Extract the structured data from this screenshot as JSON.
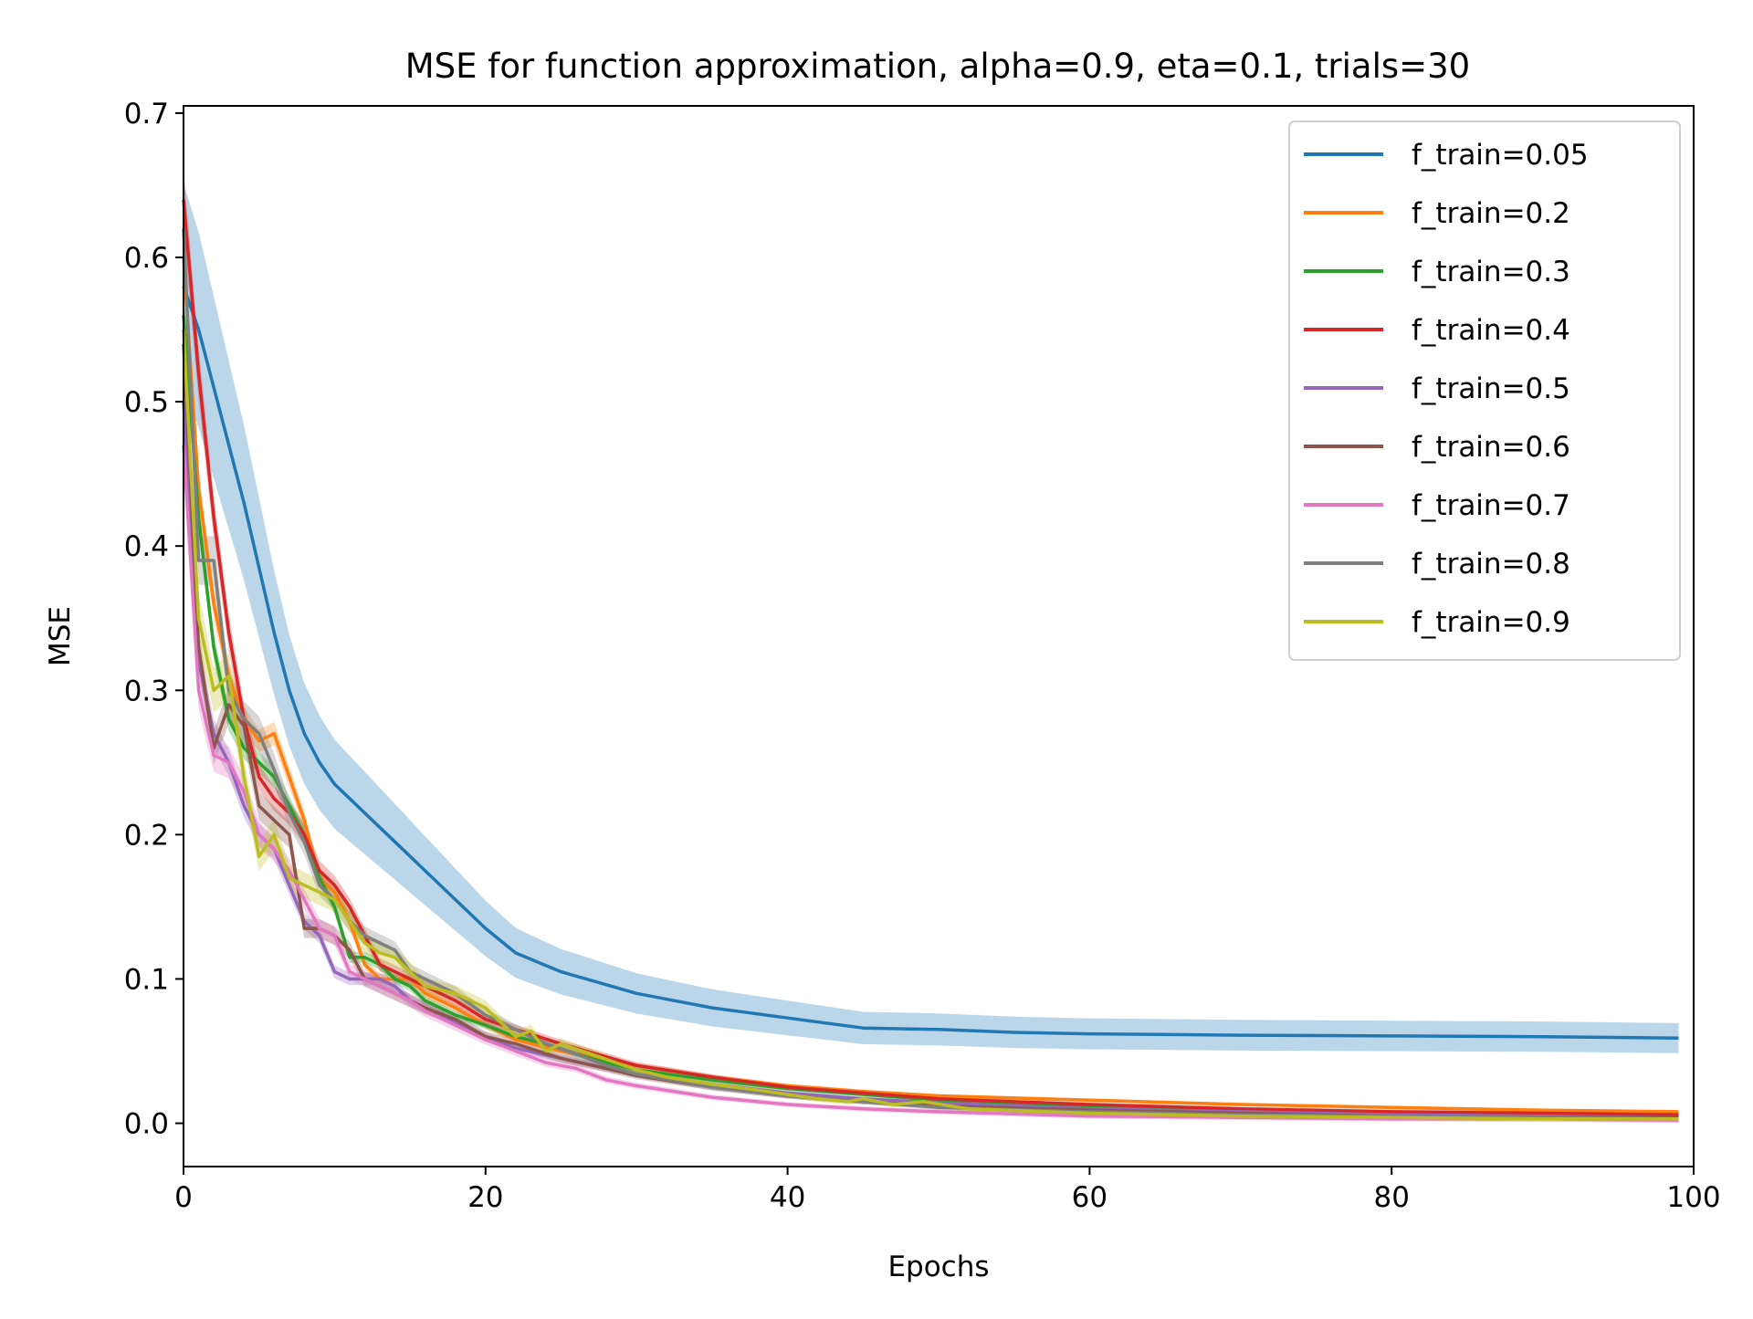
{
  "chart_data": {
    "type": "line",
    "title": "MSE for function approximation, alpha=0.9, eta=0.1, trials=30",
    "xlabel": "Epochs",
    "ylabel": "MSE",
    "xlim": [
      0,
      100
    ],
    "ylim": [
      -0.03,
      0.705
    ],
    "x_ticks": [
      0,
      20,
      40,
      60,
      80,
      100
    ],
    "y_ticks": [
      0.0,
      0.1,
      0.2,
      0.3,
      0.4,
      0.5,
      0.6,
      0.7
    ],
    "x_tick_labels": [
      "0",
      "20",
      "40",
      "60",
      "80",
      "100"
    ],
    "y_tick_labels": [
      "0.0",
      "0.1",
      "0.2",
      "0.3",
      "0.4",
      "0.5",
      "0.6",
      "0.7"
    ],
    "grid": false,
    "legend_position": "top-right",
    "series": [
      {
        "name": "f_train=0.05",
        "color": "#1f77b4",
        "band": 0.035,
        "points": [
          [
            0,
            0.58
          ],
          [
            1,
            0.55
          ],
          [
            2,
            0.51
          ],
          [
            3,
            0.47
          ],
          [
            4,
            0.43
          ],
          [
            5,
            0.385
          ],
          [
            6,
            0.34
          ],
          [
            7,
            0.3
          ],
          [
            8,
            0.27
          ],
          [
            9,
            0.25
          ],
          [
            10,
            0.235
          ],
          [
            12,
            0.215
          ],
          [
            14,
            0.195
          ],
          [
            16,
            0.175
          ],
          [
            18,
            0.155
          ],
          [
            20,
            0.135
          ],
          [
            22,
            0.118
          ],
          [
            25,
            0.105
          ],
          [
            30,
            0.09
          ],
          [
            35,
            0.08
          ],
          [
            40,
            0.073
          ],
          [
            45,
            0.066
          ],
          [
            50,
            0.065
          ],
          [
            55,
            0.063
          ],
          [
            60,
            0.062
          ],
          [
            70,
            0.061
          ],
          [
            80,
            0.0605
          ],
          [
            90,
            0.06
          ],
          [
            99,
            0.059
          ]
        ]
      },
      {
        "name": "f_train=0.2",
        "color": "#ff7f0e",
        "band": 0.008,
        "points": [
          [
            0,
            0.6
          ],
          [
            1,
            0.44
          ],
          [
            2,
            0.36
          ],
          [
            3,
            0.31
          ],
          [
            4,
            0.28
          ],
          [
            5,
            0.265
          ],
          [
            6,
            0.27
          ],
          [
            7,
            0.24
          ],
          [
            8,
            0.21
          ],
          [
            9,
            0.17
          ],
          [
            10,
            0.16
          ],
          [
            11,
            0.14
          ],
          [
            12,
            0.11
          ],
          [
            13,
            0.1
          ],
          [
            14,
            0.1
          ],
          [
            15,
            0.1
          ],
          [
            16,
            0.09
          ],
          [
            17,
            0.085
          ],
          [
            18,
            0.08
          ],
          [
            20,
            0.068
          ],
          [
            22,
            0.058
          ],
          [
            25,
            0.05
          ],
          [
            28,
            0.044
          ],
          [
            30,
            0.04
          ],
          [
            35,
            0.032
          ],
          [
            40,
            0.026
          ],
          [
            45,
            0.022
          ],
          [
            50,
            0.019
          ],
          [
            60,
            0.016
          ],
          [
            70,
            0.013
          ],
          [
            80,
            0.011
          ],
          [
            90,
            0.009
          ],
          [
            99,
            0.008
          ]
        ]
      },
      {
        "name": "f_train=0.3",
        "color": "#2ca02c",
        "band": 0.008,
        "points": [
          [
            0,
            0.56
          ],
          [
            1,
            0.42
          ],
          [
            2,
            0.33
          ],
          [
            3,
            0.28
          ],
          [
            4,
            0.26
          ],
          [
            5,
            0.25
          ],
          [
            6,
            0.24
          ],
          [
            7,
            0.22
          ],
          [
            8,
            0.2
          ],
          [
            9,
            0.17
          ],
          [
            10,
            0.15
          ],
          [
            11,
            0.115
          ],
          [
            12,
            0.115
          ],
          [
            13,
            0.11
          ],
          [
            14,
            0.1
          ],
          [
            15,
            0.095
          ],
          [
            16,
            0.085
          ],
          [
            17,
            0.08
          ],
          [
            18,
            0.075
          ],
          [
            20,
            0.068
          ],
          [
            22,
            0.06
          ],
          [
            24,
            0.055
          ],
          [
            26,
            0.048
          ],
          [
            28,
            0.042
          ],
          [
            30,
            0.037
          ],
          [
            35,
            0.03
          ],
          [
            40,
            0.024
          ],
          [
            45,
            0.02
          ],
          [
            50,
            0.016
          ],
          [
            60,
            0.012
          ],
          [
            70,
            0.009
          ],
          [
            80,
            0.007
          ],
          [
            90,
            0.006
          ],
          [
            99,
            0.005
          ]
        ]
      },
      {
        "name": "f_train=0.4",
        "color": "#d62728",
        "band": 0.01,
        "points": [
          [
            0,
            0.64
          ],
          [
            1,
            0.52
          ],
          [
            2,
            0.42
          ],
          [
            3,
            0.34
          ],
          [
            4,
            0.28
          ],
          [
            5,
            0.24
          ],
          [
            6,
            0.225
          ],
          [
            7,
            0.215
          ],
          [
            8,
            0.2
          ],
          [
            9,
            0.175
          ],
          [
            10,
            0.165
          ],
          [
            11,
            0.15
          ],
          [
            12,
            0.13
          ],
          [
            13,
            0.11
          ],
          [
            14,
            0.105
          ],
          [
            15,
            0.1
          ],
          [
            16,
            0.095
          ],
          [
            17,
            0.09
          ],
          [
            18,
            0.085
          ],
          [
            20,
            0.072
          ],
          [
            22,
            0.065
          ],
          [
            25,
            0.055
          ],
          [
            28,
            0.046
          ],
          [
            30,
            0.04
          ],
          [
            35,
            0.032
          ],
          [
            40,
            0.025
          ],
          [
            45,
            0.021
          ],
          [
            50,
            0.017
          ],
          [
            60,
            0.013
          ],
          [
            70,
            0.01
          ],
          [
            80,
            0.008
          ],
          [
            90,
            0.007
          ],
          [
            99,
            0.006
          ]
        ]
      },
      {
        "name": "f_train=0.5",
        "color": "#9467bd",
        "band": 0.01,
        "points": [
          [
            0,
            0.5
          ],
          [
            1,
            0.32
          ],
          [
            2,
            0.27
          ],
          [
            3,
            0.25
          ],
          [
            4,
            0.22
          ],
          [
            5,
            0.2
          ],
          [
            6,
            0.19
          ],
          [
            7,
            0.165
          ],
          [
            8,
            0.14
          ],
          [
            9,
            0.13
          ],
          [
            10,
            0.105
          ],
          [
            11,
            0.1
          ],
          [
            12,
            0.1
          ],
          [
            13,
            0.1
          ],
          [
            14,
            0.095
          ],
          [
            15,
            0.085
          ],
          [
            16,
            0.08
          ],
          [
            18,
            0.07
          ],
          [
            20,
            0.06
          ],
          [
            22,
            0.052
          ],
          [
            25,
            0.045
          ],
          [
            28,
            0.038
          ],
          [
            30,
            0.034
          ],
          [
            35,
            0.027
          ],
          [
            40,
            0.021
          ],
          [
            45,
            0.017
          ],
          [
            50,
            0.014
          ],
          [
            60,
            0.01
          ],
          [
            70,
            0.008
          ],
          [
            80,
            0.006
          ],
          [
            90,
            0.005
          ],
          [
            99,
            0.004
          ]
        ]
      },
      {
        "name": "f_train=0.6",
        "color": "#8c564b",
        "band": 0.012,
        "points": [
          [
            0,
            0.54
          ],
          [
            1,
            0.33
          ],
          [
            2,
            0.26
          ],
          [
            3,
            0.29
          ],
          [
            4,
            0.275
          ],
          [
            5,
            0.22
          ],
          [
            6,
            0.21
          ],
          [
            7,
            0.2
          ],
          [
            8,
            0.135
          ],
          [
            9,
            0.135
          ],
          [
            10,
            0.13
          ],
          [
            11,
            0.12
          ],
          [
            12,
            0.1
          ],
          [
            13,
            0.095
          ],
          [
            14,
            0.09
          ],
          [
            15,
            0.085
          ],
          [
            16,
            0.08
          ],
          [
            18,
            0.072
          ],
          [
            20,
            0.06
          ],
          [
            22,
            0.055
          ],
          [
            25,
            0.045
          ],
          [
            28,
            0.038
          ],
          [
            30,
            0.033
          ],
          [
            35,
            0.025
          ],
          [
            40,
            0.019
          ],
          [
            45,
            0.015
          ],
          [
            50,
            0.012
          ],
          [
            60,
            0.009
          ],
          [
            70,
            0.007
          ],
          [
            80,
            0.005
          ],
          [
            90,
            0.004
          ],
          [
            99,
            0.004
          ]
        ]
      },
      {
        "name": "f_train=0.7",
        "color": "#e377c2",
        "band": 0.012,
        "points": [
          [
            0,
            0.47
          ],
          [
            1,
            0.3
          ],
          [
            2,
            0.255
          ],
          [
            3,
            0.25
          ],
          [
            4,
            0.23
          ],
          [
            5,
            0.2
          ],
          [
            6,
            0.19
          ],
          [
            7,
            0.175
          ],
          [
            8,
            0.155
          ],
          [
            9,
            0.135
          ],
          [
            10,
            0.13
          ],
          [
            11,
            0.105
          ],
          [
            12,
            0.1
          ],
          [
            13,
            0.095
          ],
          [
            14,
            0.09
          ],
          [
            15,
            0.085
          ],
          [
            16,
            0.078
          ],
          [
            18,
            0.068
          ],
          [
            20,
            0.058
          ],
          [
            22,
            0.05
          ],
          [
            24,
            0.042
          ],
          [
            26,
            0.038
          ],
          [
            28,
            0.03
          ],
          [
            30,
            0.026
          ],
          [
            35,
            0.018
          ],
          [
            40,
            0.013
          ],
          [
            45,
            0.01
          ],
          [
            50,
            0.008
          ],
          [
            60,
            0.005
          ],
          [
            70,
            0.004
          ],
          [
            80,
            0.003
          ],
          [
            90,
            0.003
          ],
          [
            99,
            0.002
          ]
        ]
      },
      {
        "name": "f_train=0.8",
        "color": "#7f7f7f",
        "band": 0.012,
        "points": [
          [
            0,
            0.62
          ],
          [
            1,
            0.39
          ],
          [
            2,
            0.39
          ],
          [
            3,
            0.3
          ],
          [
            4,
            0.28
          ],
          [
            5,
            0.27
          ],
          [
            6,
            0.245
          ],
          [
            7,
            0.215
          ],
          [
            8,
            0.195
          ],
          [
            9,
            0.165
          ],
          [
            10,
            0.155
          ],
          [
            11,
            0.14
          ],
          [
            12,
            0.13
          ],
          [
            13,
            0.125
          ],
          [
            14,
            0.12
          ],
          [
            15,
            0.105
          ],
          [
            16,
            0.1
          ],
          [
            18,
            0.09
          ],
          [
            20,
            0.075
          ],
          [
            22,
            0.065
          ],
          [
            24,
            0.055
          ],
          [
            26,
            0.048
          ],
          [
            28,
            0.04
          ],
          [
            30,
            0.034
          ],
          [
            35,
            0.025
          ],
          [
            40,
            0.019
          ],
          [
            45,
            0.015
          ],
          [
            50,
            0.011
          ],
          [
            60,
            0.008
          ],
          [
            70,
            0.006
          ],
          [
            80,
            0.005
          ],
          [
            90,
            0.004
          ],
          [
            99,
            0.003
          ]
        ]
      },
      {
        "name": "f_train=0.9",
        "color": "#bcbd22",
        "band": 0.014,
        "points": [
          [
            0,
            0.55
          ],
          [
            1,
            0.35
          ],
          [
            2,
            0.3
          ],
          [
            3,
            0.31
          ],
          [
            4,
            0.24
          ],
          [
            5,
            0.185
          ],
          [
            6,
            0.2
          ],
          [
            7,
            0.17
          ],
          [
            8,
            0.165
          ],
          [
            9,
            0.16
          ],
          [
            10,
            0.155
          ],
          [
            11,
            0.14
          ],
          [
            12,
            0.125
          ],
          [
            13,
            0.118
          ],
          [
            14,
            0.115
          ],
          [
            15,
            0.105
          ],
          [
            16,
            0.095
          ],
          [
            18,
            0.09
          ],
          [
            20,
            0.08
          ],
          [
            22,
            0.06
          ],
          [
            23,
            0.064
          ],
          [
            24,
            0.05
          ],
          [
            25,
            0.055
          ],
          [
            27,
            0.048
          ],
          [
            30,
            0.037
          ],
          [
            32,
            0.032
          ],
          [
            35,
            0.027
          ],
          [
            38,
            0.023
          ],
          [
            40,
            0.02
          ],
          [
            42,
            0.017
          ],
          [
            44,
            0.015
          ],
          [
            45,
            0.017
          ],
          [
            47,
            0.013
          ],
          [
            49,
            0.015
          ],
          [
            52,
            0.01
          ],
          [
            60,
            0.007
          ],
          [
            70,
            0.005
          ],
          [
            80,
            0.004
          ],
          [
            90,
            0.003
          ],
          [
            99,
            0.003
          ]
        ]
      }
    ]
  }
}
